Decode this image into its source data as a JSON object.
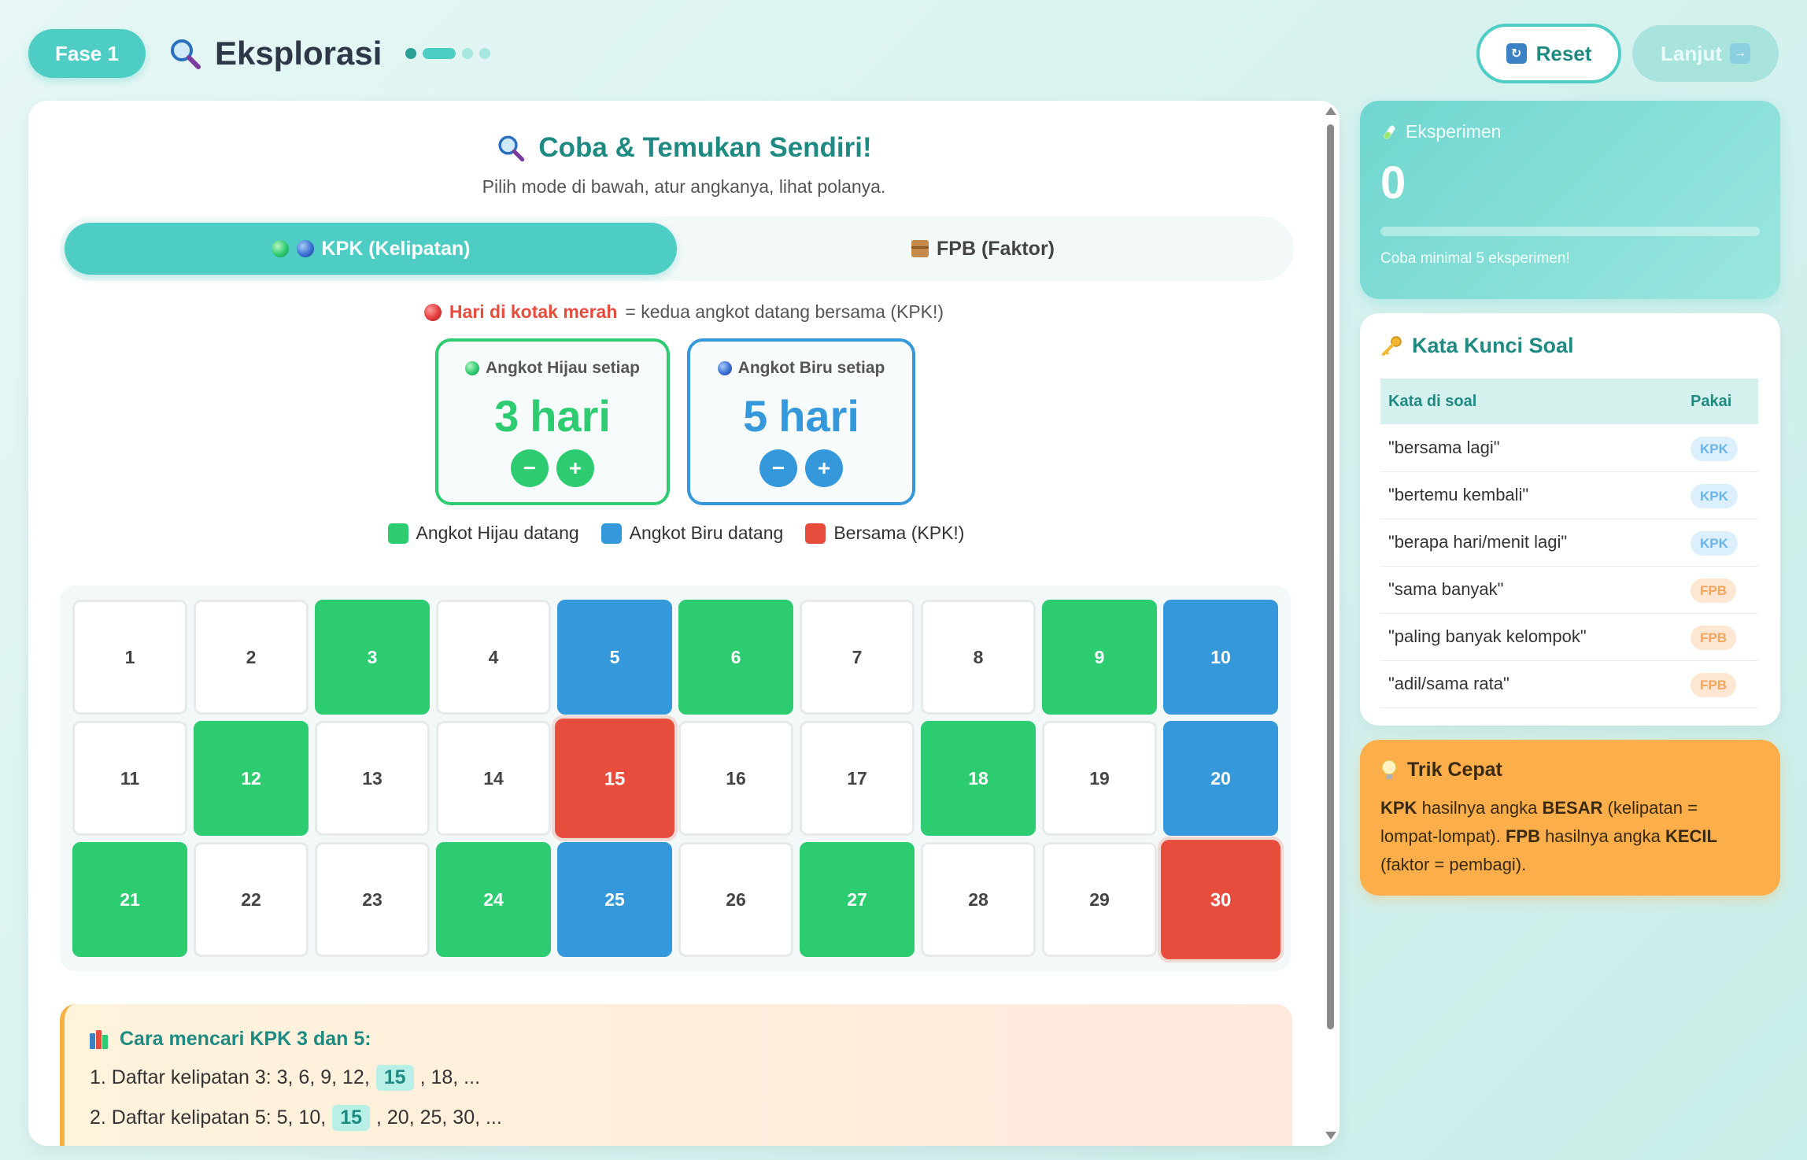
{
  "header": {
    "phase": "Fase 1",
    "title": "Eksplorasi",
    "reset_label": "Reset",
    "next_label": "Lanjut"
  },
  "main": {
    "section_title": "Coba & Temukan Sendiri!",
    "section_subtitle": "Pilih mode di bawah, atur angkanya, lihat polanya.",
    "tabs": [
      {
        "label": "KPK (Kelipatan)",
        "active": true
      },
      {
        "label": "FPB (Faktor)",
        "active": false
      }
    ],
    "hint_red": "Hari di kotak merah",
    "hint_rest": "= kedua angkot datang bersama (KPK!)",
    "green_counter": {
      "label": "Angkot Hijau setiap",
      "value": "3",
      "unit": "hari"
    },
    "blue_counter": {
      "label": "Angkot Biru setiap",
      "value": "5",
      "unit": "hari"
    },
    "stepper_minus": "−",
    "stepper_plus": "+",
    "legend": [
      "Angkot Hijau datang",
      "Angkot Biru datang",
      "Bersama (KPK!)"
    ],
    "calendar": [
      {
        "day": "1",
        "state": "none"
      },
      {
        "day": "2",
        "state": "none"
      },
      {
        "day": "3",
        "state": "green"
      },
      {
        "day": "4",
        "state": "none"
      },
      {
        "day": "5",
        "state": "blue"
      },
      {
        "day": "6",
        "state": "green"
      },
      {
        "day": "7",
        "state": "none"
      },
      {
        "day": "8",
        "state": "none"
      },
      {
        "day": "9",
        "state": "green"
      },
      {
        "day": "10",
        "state": "blue"
      },
      {
        "day": "11",
        "state": "none"
      },
      {
        "day": "12",
        "state": "green"
      },
      {
        "day": "13",
        "state": "none"
      },
      {
        "day": "14",
        "state": "none"
      },
      {
        "day": "15",
        "state": "red"
      },
      {
        "day": "16",
        "state": "none"
      },
      {
        "day": "17",
        "state": "none"
      },
      {
        "day": "18",
        "state": "green"
      },
      {
        "day": "19",
        "state": "none"
      },
      {
        "day": "20",
        "state": "blue"
      },
      {
        "day": "21",
        "state": "green"
      },
      {
        "day": "22",
        "state": "none"
      },
      {
        "day": "23",
        "state": "none"
      },
      {
        "day": "24",
        "state": "green"
      },
      {
        "day": "25",
        "state": "blue"
      },
      {
        "day": "26",
        "state": "none"
      },
      {
        "day": "27",
        "state": "green"
      },
      {
        "day": "28",
        "state": "none"
      },
      {
        "day": "29",
        "state": "none"
      },
      {
        "day": "30",
        "state": "red"
      }
    ],
    "explain": {
      "title": "Cara mencari KPK 3 dan 5:",
      "line1_pre": "1. Daftar kelipatan 3: 3, 6, 9, 12,",
      "line1_hl": "15",
      "line1_post": ", 18, ...",
      "line2_pre": "2. Daftar kelipatan 5: 5, 10,",
      "line2_hl": "15",
      "line2_post": ", 20, 25, 30, ..."
    }
  },
  "sidebar": {
    "experiment": {
      "label": "Eksperimen",
      "count": "0",
      "progress": 0,
      "note": "Coba minimal 5 eksperimen!"
    },
    "keywords": {
      "title": "Kata Kunci Soal",
      "col_word": "Kata di soal",
      "col_use": "Pakai",
      "rows": [
        {
          "word": "\"bersama lagi\"",
          "use": "KPK"
        },
        {
          "word": "\"bertemu kembali\"",
          "use": "KPK"
        },
        {
          "word": "\"berapa hari/menit lagi\"",
          "use": "KPK"
        },
        {
          "word": "\"sama banyak\"",
          "use": "FPB"
        },
        {
          "word": "\"paling banyak kelompok\"",
          "use": "FPB"
        },
        {
          "word": "\"adil/sama rata\"",
          "use": "FPB"
        }
      ]
    },
    "trick": {
      "title": "Trik Cepat",
      "t1": "KPK",
      "t2": " hasilnya angka ",
      "t3": "BESAR",
      "t4": " (kelipatan = lompat-lompat). ",
      "t5": "FPB",
      "t6": " hasilnya angka ",
      "t7": "KECIL",
      "t8": " (faktor = pembagi)."
    }
  },
  "colors": {
    "accent": "#4ecdc4",
    "green": "#2ecc71",
    "blue": "#3498db",
    "red": "#e74c3c",
    "orange": "#fbae4a"
  }
}
